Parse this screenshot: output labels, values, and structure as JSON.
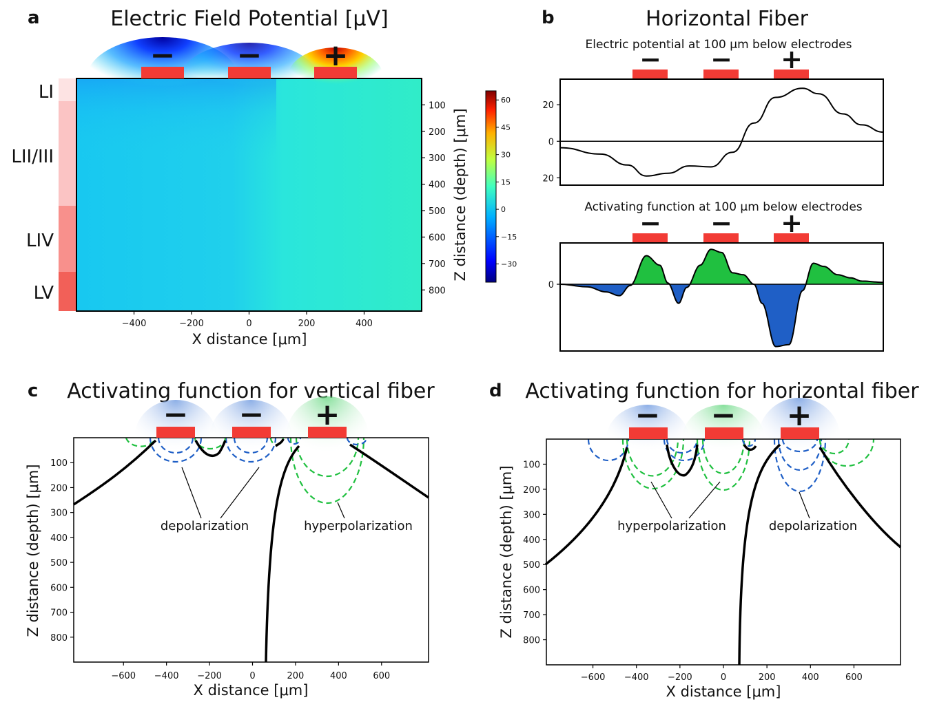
{
  "panels": {
    "a": {
      "letter": "a",
      "title": "Electric Field Potential [μV]",
      "xlabel": "X distance [μm]",
      "ylabel": "Z distance (depth) [μm]",
      "layers": [
        "LI",
        "LII/III",
        "LIV",
        "LV"
      ],
      "layer_colors": [
        "#fde3e3",
        "#fbc4c4",
        "#f8908c",
        "#f26058"
      ],
      "electrode_signs": [
        "−",
        "−",
        "+"
      ]
    },
    "b": {
      "letter": "b",
      "title": "Horizontal Fiber",
      "sub1": "Electric potential at 100 μm below electrodes",
      "sub2": "Activating function at 100 μm below electrodes",
      "electrode_signs": [
        "−",
        "−",
        "+"
      ]
    },
    "c": {
      "letter": "c",
      "title": "Activating function for vertical fiber",
      "xlabel": "X distance [μm]",
      "ylabel": "Z distance (depth) [μm]",
      "annot_left": "depolarization",
      "annot_right": "hyperpolarization",
      "electrode_signs": [
        "−",
        "−",
        "+"
      ]
    },
    "d": {
      "letter": "d",
      "title": "Activating function for horizontal fiber",
      "xlabel": "X distance [μm]",
      "ylabel": "Z distance (depth) [μm]",
      "annot_left": "hyperpolarization",
      "annot_right": "depolarization",
      "electrode_signs": [
        "−",
        "−",
        "+"
      ]
    }
  },
  "colors": {
    "electrode": "#f23b35",
    "depolarization": "#1f5fc6",
    "hyperpolarization": "#20c040",
    "curve": "#000000"
  },
  "chart_data": [
    {
      "panel": "a",
      "type": "heatmap",
      "title": "Electric Field Potential [μV]",
      "xlabel": "X distance [μm]",
      "ylabel": "Z distance (depth) [μm]",
      "x_ticks": [
        -400,
        -200,
        0,
        200,
        400
      ],
      "y_ticks": [
        100,
        200,
        300,
        400,
        500,
        600,
        700,
        800
      ],
      "xlim": [
        -600,
        600
      ],
      "ylim": [
        0,
        880
      ],
      "electrodes_x": [
        -300,
        0,
        300
      ],
      "electrode_polarity": [
        "-",
        "-",
        "+"
      ],
      "colorbar_ticks": [
        60,
        45,
        30,
        15,
        0,
        -15,
        -30
      ],
      "colorbar_range": [
        -40,
        65
      ],
      "colormap": "jet"
    },
    {
      "panel": "b-top",
      "type": "line",
      "title": "Electric potential at 100 μm below electrodes",
      "y_ticks": [
        "20",
        "0",
        "20"
      ],
      "y_tick_values": [
        20,
        0,
        -20
      ],
      "ylim": [
        -24,
        34
      ],
      "xlim": [
        -600,
        600
      ],
      "x": [
        -600,
        -450,
        -350,
        -280,
        -200,
        -120,
        -40,
        40,
        120,
        200,
        300,
        360,
        450,
        520,
        600
      ],
      "values": [
        -3.5,
        -7,
        -13,
        -19,
        -17.5,
        -13.5,
        -14,
        -6,
        10,
        24,
        29,
        26,
        15,
        9,
        5
      ]
    },
    {
      "panel": "b-bottom",
      "type": "area",
      "title": "Activating function at 100 μm below electrodes",
      "y_ticks": [
        "0"
      ],
      "y_tick_values": [
        0
      ],
      "ylim": [
        -1.05,
        0.65
      ],
      "xlim": [
        -600,
        600
      ],
      "x": [
        -600,
        -500,
        -430,
        -380,
        -340,
        -280,
        -230,
        -200,
        -160,
        -130,
        -80,
        -40,
        0,
        40,
        80,
        120,
        150,
        200,
        250,
        300,
        340,
        380,
        430,
        480,
        520,
        600
      ],
      "values": [
        0,
        -0.04,
        -0.12,
        -0.18,
        -0.02,
        0.45,
        0.3,
        0.02,
        -0.3,
        -0.05,
        0.3,
        0.55,
        0.5,
        0.18,
        0.15,
        0.0,
        -0.3,
        -0.98,
        -0.95,
        -0.1,
        0.33,
        0.28,
        0.15,
        0.1,
        0.05,
        0.03
      ],
      "positive_color": "hyperpolarization",
      "negative_color": "depolarization"
    },
    {
      "panel": "c",
      "type": "heatmap",
      "title": "Activating function for vertical fiber",
      "xlabel": "X distance [μm]",
      "ylabel": "Z distance (depth) [μm]",
      "x_ticks": [
        -600,
        -400,
        -200,
        0,
        200,
        400,
        600
      ],
      "y_ticks": [
        100,
        200,
        300,
        400,
        500,
        600,
        700,
        800
      ],
      "xlim": [
        -700,
        700
      ],
      "ylim": [
        0,
        900
      ],
      "electrodes_x": [
        -300,
        0,
        300
      ]
    },
    {
      "panel": "d",
      "type": "heatmap",
      "title": "Activating function for horizontal fiber",
      "xlabel": "X distance [μm]",
      "ylabel": "Z distance (depth) [μm]",
      "x_ticks": [
        -600,
        -400,
        -200,
        0,
        200,
        400,
        600
      ],
      "y_ticks": [
        100,
        200,
        300,
        400,
        500,
        600,
        700,
        800
      ],
      "xlim": [
        -700,
        700
      ],
      "ylim": [
        0,
        900
      ],
      "electrodes_x": [
        -300,
        0,
        300
      ]
    }
  ]
}
